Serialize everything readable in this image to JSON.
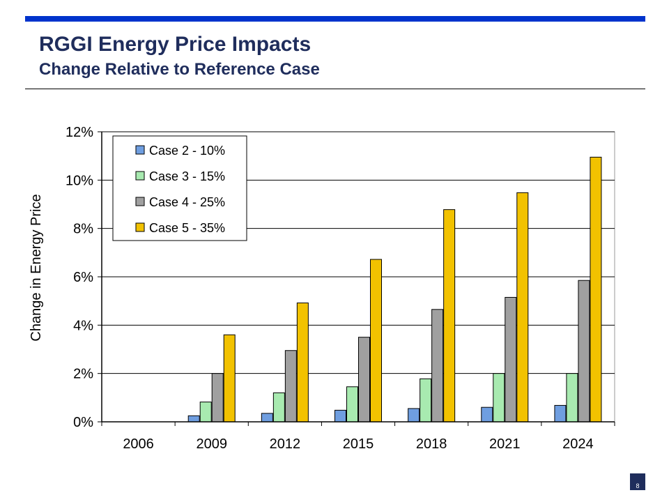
{
  "header": {
    "title": "RGGI Energy Price Impacts",
    "subtitle": "Change Relative to Reference Case"
  },
  "page_number": "8",
  "colors": {
    "accent_bar": "#0033cc",
    "title_text": "#1f2d5c"
  },
  "chart_data": {
    "type": "bar",
    "title": "",
    "xlabel": "",
    "ylabel": "Change in Energy Price",
    "categories": [
      "2006",
      "2009",
      "2012",
      "2015",
      "2018",
      "2021",
      "2024"
    ],
    "ylim": [
      0,
      12
    ],
    "yticks": [
      0,
      2,
      4,
      6,
      8,
      10,
      12
    ],
    "ytick_labels": [
      "0%",
      "2%",
      "4%",
      "6%",
      "8%",
      "10%",
      "12%"
    ],
    "grid": true,
    "legend_position": "top-left",
    "series": [
      {
        "name": "Case 2 - 10%",
        "color": "#6f9ee0",
        "values": [
          0,
          0.25,
          0.35,
          0.48,
          0.55,
          0.6,
          0.68
        ]
      },
      {
        "name": "Case 3 - 15%",
        "color": "#a8eab0",
        "values": [
          0,
          0.82,
          1.2,
          1.45,
          1.78,
          2.0,
          2.0
        ]
      },
      {
        "name": "Case 4 - 25%",
        "color": "#a0a0a0",
        "values": [
          0,
          2.0,
          2.95,
          3.5,
          4.65,
          5.15,
          5.85
        ]
      },
      {
        "name": "Case 5 - 35%",
        "color": "#f2c200",
        "values": [
          0,
          3.6,
          4.92,
          6.72,
          8.78,
          9.48,
          10.95
        ]
      }
    ]
  }
}
